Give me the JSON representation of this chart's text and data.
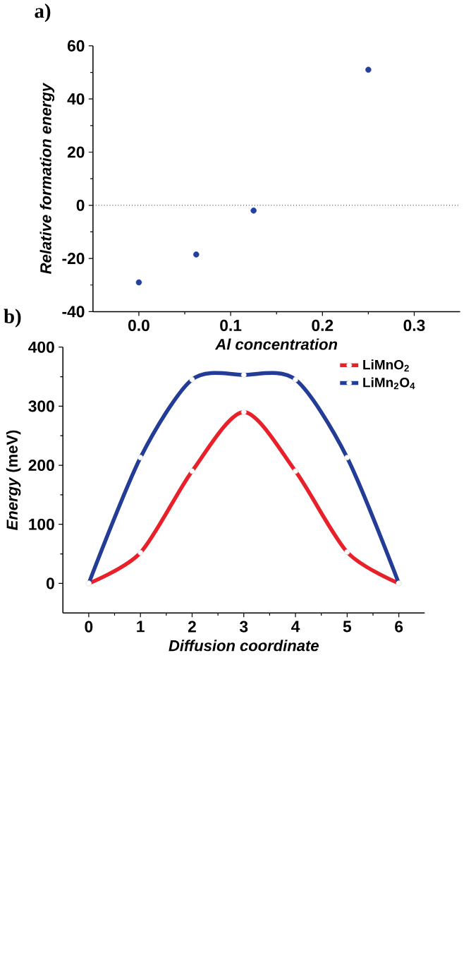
{
  "chart_data": [
    {
      "type": "scatter",
      "title": "a)",
      "xlabel": "Al concentration",
      "ylabel": "Relative formation energy",
      "x": [
        0,
        0.0625,
        0.125,
        0.25
      ],
      "marker": "circle",
      "series": [
        {
          "color": "#2340a0",
          "values": [
            -29,
            -18.5,
            -2,
            51
          ]
        }
      ],
      "xlim": [
        -0.05,
        0.35
      ],
      "ylim": [
        -40,
        60
      ],
      "xticks": [
        {
          "value": 0,
          "label": "0.0"
        },
        {
          "value": 0.1,
          "label": "0.1"
        },
        {
          "value": 0.2,
          "label": "0.2"
        },
        {
          "value": 0.3,
          "label": "0.3"
        }
      ],
      "yticks": [
        -40,
        -20,
        0,
        20,
        40,
        60
      ],
      "ref_lines": [
        {
          "axis": "y",
          "value": 0,
          "line_style": "dotted",
          "color": "#000000"
        }
      ]
    },
    {
      "type": "line",
      "title": "b)",
      "xlabel": "Diffusion coordinate",
      "ylabel": "*Energy* (meV)",
      "x": [
        0,
        1,
        2,
        3,
        4,
        5,
        6
      ],
      "marker": "circle",
      "legend": "top right",
      "series": [
        {
          "name": "LiMnO$_{2}$",
          "color": "#e8202a",
          "values": [
            0,
            52,
            190,
            290,
            190,
            53,
            0
          ]
        },
        {
          "name": "LiMn$_{2}$O$_{4}$",
          "color": "#233c96",
          "values": [
            0,
            213,
            345,
            353,
            345,
            213,
            0
          ]
        }
      ],
      "xlim": [
        -0.5,
        6.5
      ],
      "ylim": [
        -50,
        400
      ],
      "xticks": [
        0,
        1,
        2,
        3,
        4,
        5,
        6
      ],
      "yticks": [
        0,
        100,
        200,
        300,
        400
      ]
    }
  ]
}
